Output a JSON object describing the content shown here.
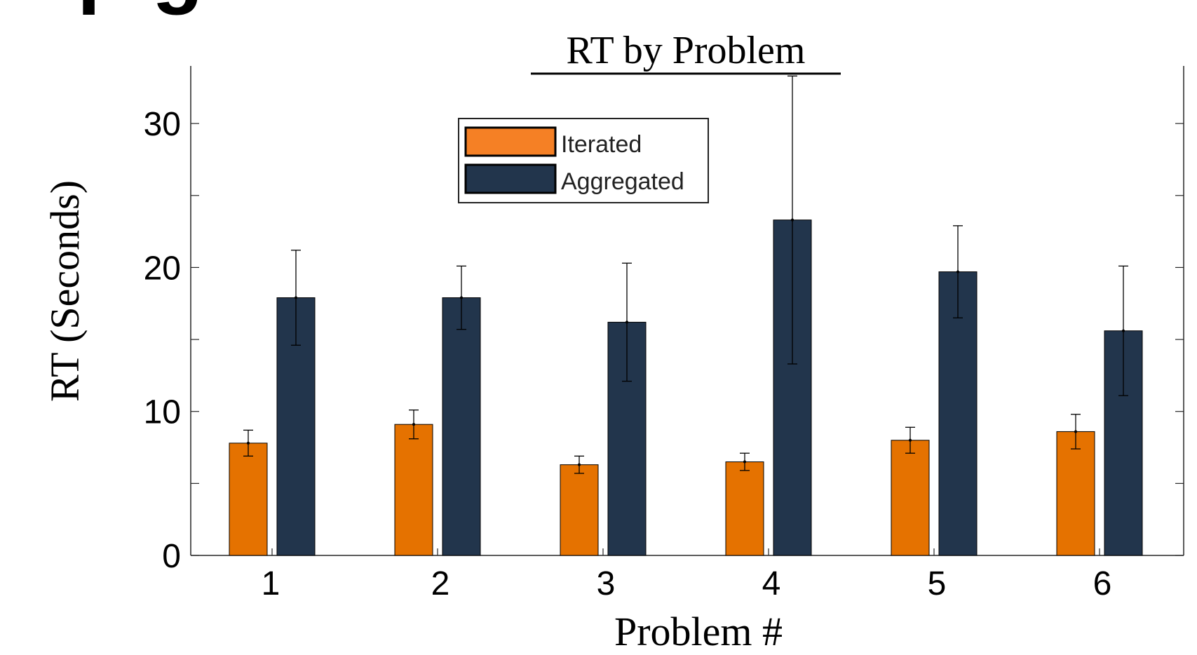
{
  "heading": {
    "text": "p…g"
  },
  "chart_data": {
    "type": "bar",
    "title": "RT by Problem",
    "xlabel": "Problem #",
    "ylabel": "RT (Seconds)",
    "categories": [
      "1",
      "2",
      "3",
      "4",
      "5",
      "6"
    ],
    "ylim": [
      0,
      34
    ],
    "yticks": [
      0,
      10,
      20,
      30
    ],
    "yticks_minor": [
      5,
      15,
      25
    ],
    "grid": false,
    "legend_position": "top-center",
    "series": [
      {
        "name": "Iterated",
        "color": "#E57200",
        "values": [
          7.8,
          9.1,
          6.3,
          6.5,
          8.0,
          8.6
        ],
        "error": [
          0.9,
          1.0,
          0.6,
          0.6,
          0.9,
          1.2
        ]
      },
      {
        "name": "Aggregated",
        "color": "#22354C",
        "values": [
          17.9,
          17.9,
          16.2,
          23.3,
          19.7,
          15.6
        ],
        "error": [
          3.3,
          2.2,
          4.1,
          10.0,
          3.2,
          4.5
        ]
      }
    ]
  }
}
